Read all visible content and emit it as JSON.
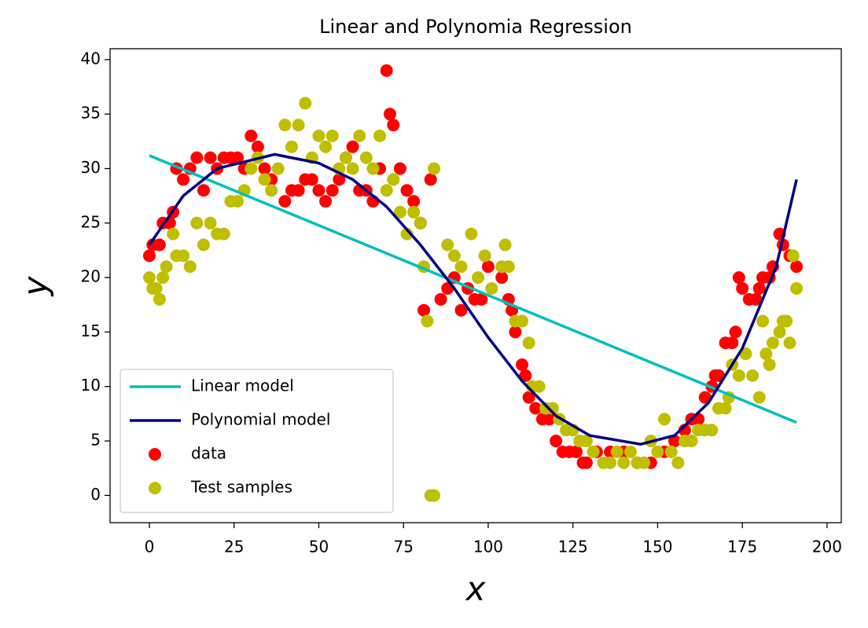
{
  "chart_data": {
    "type": "scatter",
    "title": "Linear and Polynomia Regression",
    "x_label": "x",
    "y_label": "y",
    "xlim": [
      -11.6,
      204.2
    ],
    "ylim": [
      -2.5,
      41
    ],
    "xticks": [
      0,
      25,
      50,
      75,
      100,
      125,
      150,
      175,
      200
    ],
    "yticks": [
      0,
      5,
      10,
      15,
      20,
      25,
      30,
      35,
      40
    ],
    "legend": "lower left",
    "series": [
      {
        "name": "Linear model",
        "type": "line",
        "color": "#00bfbf",
        "x": [
          0,
          191
        ],
        "values": [
          31.2,
          6.7
        ]
      },
      {
        "name": "Polynomial model",
        "type": "line",
        "color": "#000080",
        "x": [
          0,
          10,
          20,
          37,
          50,
          60,
          70,
          80,
          90,
          100,
          110,
          120,
          130,
          145,
          155,
          165,
          175,
          185,
          191
        ],
        "values": [
          23,
          27.5,
          30,
          31.3,
          30.5,
          29,
          26.5,
          23,
          19,
          14.5,
          10.5,
          7.3,
          5.5,
          4.7,
          5.5,
          8.5,
          13.5,
          21,
          29
        ]
      },
      {
        "name": "data",
        "type": "scatter",
        "color": "#ff0000",
        "x": [
          0,
          1,
          3,
          4,
          6,
          7,
          8,
          10,
          12,
          14,
          16,
          18,
          20,
          22,
          24,
          26,
          28,
          30,
          32,
          34,
          36,
          40,
          42,
          44,
          46,
          48,
          50,
          52,
          54,
          56,
          58,
          60,
          62,
          64,
          66,
          68,
          70,
          71,
          72,
          74,
          76,
          78,
          80,
          81,
          83,
          86,
          88,
          90,
          92,
          94,
          96,
          98,
          100,
          104,
          106,
          107,
          108,
          110,
          111,
          112,
          114,
          116,
          118,
          120,
          122,
          124,
          126,
          128,
          129,
          132,
          136,
          140,
          144,
          148,
          152,
          155,
          158,
          160,
          162,
          164,
          166,
          167,
          168,
          170,
          172,
          173,
          174,
          175,
          177,
          179,
          180,
          181,
          183,
          184,
          186,
          187,
          189,
          191
        ],
        "values": [
          22,
          23,
          23,
          25,
          25,
          26,
          30,
          29,
          30,
          31,
          28,
          31,
          30,
          31,
          31,
          31,
          30,
          33,
          32,
          30,
          29,
          27,
          28,
          28,
          29,
          29,
          28,
          27,
          28,
          29,
          31,
          32,
          28,
          28,
          27,
          30,
          39,
          35,
          34,
          30,
          28,
          27,
          25,
          17,
          29,
          18,
          19,
          20,
          17,
          19,
          18,
          18,
          21,
          20,
          18,
          17,
          15,
          12,
          11,
          9,
          8,
          7,
          7,
          5,
          4,
          4,
          4,
          3,
          3,
          4,
          4,
          4,
          3,
          3,
          4,
          5,
          6,
          7,
          7,
          9,
          10,
          11,
          11,
          14,
          14,
          15,
          20,
          19,
          18,
          18,
          19,
          20,
          20,
          21,
          24,
          23,
          22,
          21
        ]
      },
      {
        "name": "Test samples",
        "type": "scatter",
        "color": "#bfbf00",
        "x": [
          0,
          1,
          2,
          3,
          4,
          5,
          7,
          8,
          10,
          12,
          14,
          16,
          18,
          20,
          22,
          24,
          26,
          28,
          30,
          32,
          34,
          36,
          38,
          40,
          42,
          44,
          46,
          48,
          50,
          52,
          54,
          56,
          58,
          60,
          62,
          64,
          66,
          68,
          70,
          72,
          74,
          76,
          78,
          80,
          81,
          82,
          83,
          84,
          84,
          88,
          90,
          92,
          95,
          97,
          99,
          101,
          104,
          105,
          106,
          108,
          110,
          112,
          113,
          115,
          117,
          119,
          121,
          123,
          125,
          127,
          129,
          131,
          134,
          136,
          138,
          140,
          142,
          144,
          146,
          148,
          150,
          152,
          154,
          156,
          158,
          160,
          162,
          164,
          166,
          168,
          170,
          171,
          172,
          174,
          176,
          178,
          180,
          181,
          182,
          183,
          184,
          186,
          187,
          188,
          189,
          190,
          191
        ],
        "values": [
          20,
          19,
          19,
          18,
          20,
          21,
          24,
          22,
          22,
          21,
          25,
          23,
          25,
          24,
          24,
          27,
          27,
          28,
          30,
          31,
          29,
          28,
          30,
          34,
          32,
          34,
          36,
          31,
          33,
          32,
          33,
          30,
          31,
          30,
          33,
          31,
          30,
          33,
          28,
          29,
          26,
          24,
          26,
          25,
          21,
          16,
          0,
          0,
          30,
          23,
          22,
          21,
          24,
          20,
          22,
          19,
          21,
          23,
          21,
          16,
          16,
          14,
          10,
          10,
          8,
          8,
          7,
          6,
          6,
          5,
          5,
          4,
          3,
          3,
          4,
          3,
          4,
          3,
          3,
          5,
          4,
          7,
          4,
          3,
          5,
          5,
          6,
          6,
          6,
          8,
          8,
          9,
          12,
          11,
          13,
          11,
          9,
          16,
          13,
          12,
          14,
          15,
          16,
          16,
          14,
          22,
          19
        ]
      }
    ]
  }
}
